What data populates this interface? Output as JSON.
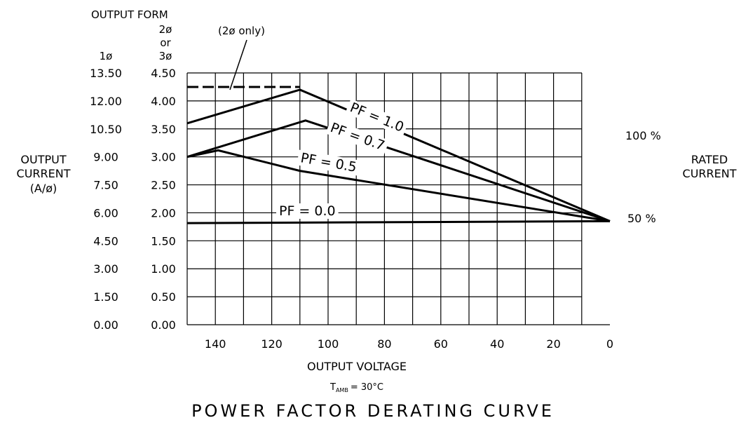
{
  "chart_data": {
    "type": "line",
    "title": "POWER FACTOR DERATING CURVE",
    "xlabel": "OUTPUT VOLTAGE",
    "condition": {
      "prefix": "T",
      "subscript": "AMB",
      "rest": "=  30°C"
    },
    "xlim": [
      150,
      0
    ],
    "x_ticks": [
      "140",
      "120",
      "100",
      "80",
      "60",
      "40",
      "20",
      "0"
    ],
    "x_tick_values": [
      140,
      120,
      100,
      80,
      60,
      40,
      20,
      0
    ],
    "x_grid_values": [
      150,
      140,
      130,
      120,
      110,
      100,
      90,
      80,
      70,
      60,
      50,
      40,
      30,
      20,
      10,
      0
    ],
    "ylim": [
      0,
      13.5
    ],
    "y_grid_values": [
      0,
      1.5,
      3,
      4.5,
      6,
      7.5,
      9,
      10.5,
      12,
      13.5
    ],
    "y_ticks_1ph": [
      "0.00",
      "1.50",
      "3.00",
      "4.50",
      "6.00",
      "7.50",
      "9.00",
      "10.50",
      "12.00",
      "13.50"
    ],
    "y_ticks_23ph": [
      "0.00",
      "0.50",
      "1.00",
      "1.50",
      "2.00",
      "2.50",
      "3.00",
      "3.50",
      "4.00",
      "4.50"
    ],
    "ylabel_lines": [
      "OUTPUT",
      "CURRENT",
      "(A/ø)"
    ],
    "output_form": {
      "label": "OUTPUT FORM",
      "col1": "1ø",
      "col2_lines": [
        "2ø",
        "or",
        "3ø"
      ]
    },
    "right_labels": {
      "pct100": "100  %",
      "pct50": "50  %",
      "rated_lines": [
        "RATED",
        "CURRENT"
      ]
    },
    "note": "(2ø only)",
    "series": [
      {
        "name": "PF = 1.0",
        "x": [
          150,
          110,
          0
        ],
        "y": [
          10.8,
          12.6,
          5.55
        ]
      },
      {
        "name": "PF = 0.7",
        "x": [
          150,
          108,
          0
        ],
        "y": [
          9.0,
          10.95,
          5.55
        ]
      },
      {
        "name": "PF = 0.5",
        "x": [
          150,
          139,
          110,
          0
        ],
        "y": [
          9.0,
          9.35,
          8.25,
          5.55
        ]
      },
      {
        "name": "PF = 0.0",
        "x": [
          150,
          0
        ],
        "y": [
          5.45,
          5.55
        ]
      }
    ],
    "dashed_series": {
      "x": [
        150,
        110
      ],
      "y": [
        12.75,
        12.75
      ]
    }
  }
}
